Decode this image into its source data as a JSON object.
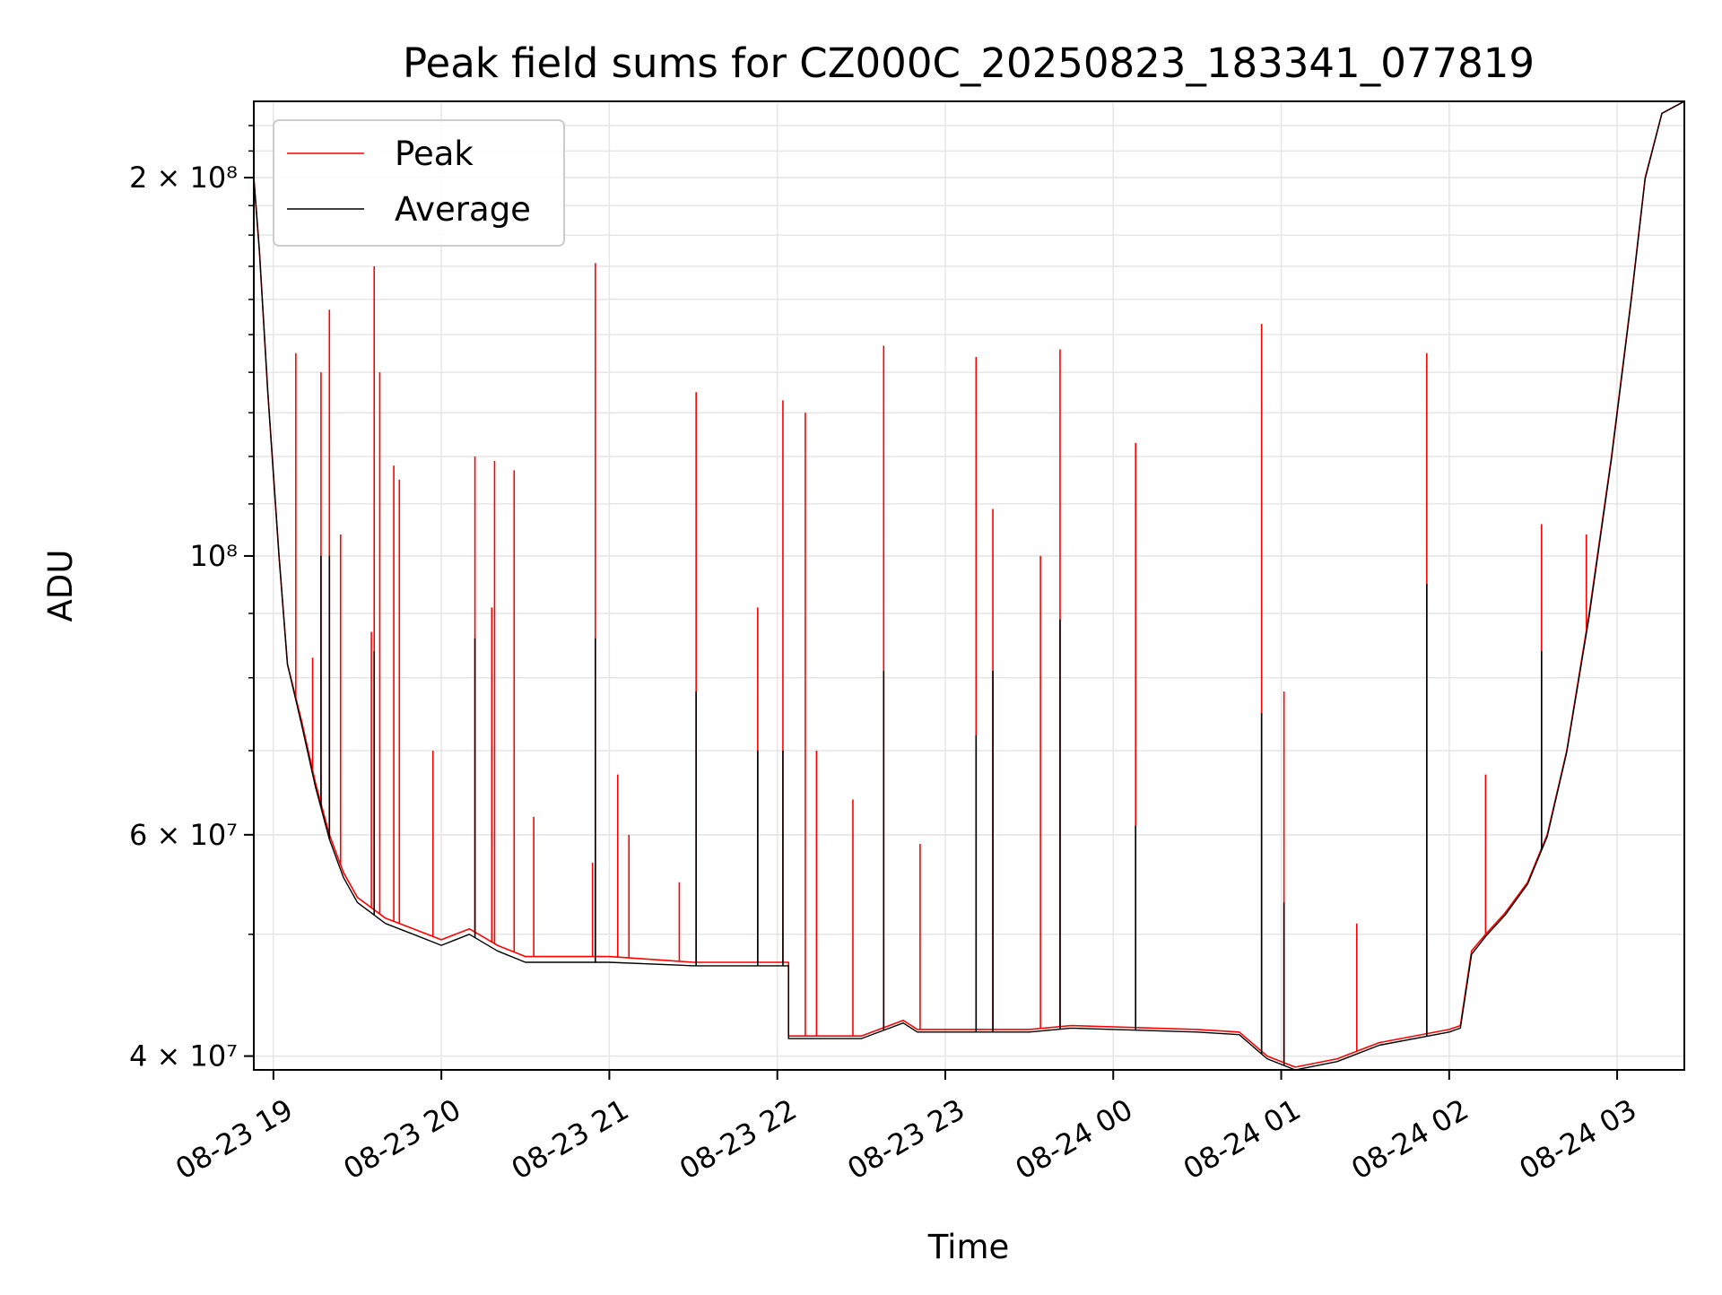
{
  "chart_data": {
    "type": "line",
    "title": "Peak field sums for CZ000C_20250823_183341_077819",
    "xlabel": "Time",
    "ylabel": "ADU",
    "y_scale": "log",
    "ylim": [
      39000000,
      230000000
    ],
    "xlim": [
      "2025-08-23 18:53",
      "2025-08-24 03:24"
    ],
    "grid": true,
    "legend_position": "top-left",
    "x_ticks": [
      {
        "label": "08-23 19",
        "value": "2025-08-23 19:00"
      },
      {
        "label": "08-23 20",
        "value": "2025-08-23 20:00"
      },
      {
        "label": "08-23 21",
        "value": "2025-08-23 21:00"
      },
      {
        "label": "08-23 22",
        "value": "2025-08-23 22:00"
      },
      {
        "label": "08-23 23",
        "value": "2025-08-23 23:00"
      },
      {
        "label": "08-24 00",
        "value": "2025-08-24 00:00"
      },
      {
        "label": "08-24 01",
        "value": "2025-08-24 01:00"
      },
      {
        "label": "08-24 02",
        "value": "2025-08-24 02:00"
      },
      {
        "label": "08-24 03",
        "value": "2025-08-24 03:00"
      }
    ],
    "y_ticks": [
      {
        "label": "4 × 10⁷",
        "value": 40000000
      },
      {
        "label": "6 × 10⁷",
        "value": 60000000
      },
      {
        "label": "10⁸",
        "value": 100000000
      },
      {
        "label": "2 × 10⁸",
        "value": 200000000
      }
    ],
    "series": [
      {
        "name": "Peak",
        "color": "#ff0000",
        "baseline": [
          [
            "2025-08-23 18:53",
            200000000
          ],
          [
            "2025-08-23 18:55",
            175000000
          ],
          [
            "2025-08-23 18:58",
            135000000
          ],
          [
            "2025-08-23 19:02",
            100000000
          ],
          [
            "2025-08-23 19:05",
            82000000
          ],
          [
            "2025-08-23 19:10",
            74000000
          ],
          [
            "2025-08-23 19:15",
            66000000
          ],
          [
            "2025-08-23 19:20",
            60000000
          ],
          [
            "2025-08-23 19:25",
            56000000
          ],
          [
            "2025-08-23 19:30",
            53500000
          ],
          [
            "2025-08-23 19:40",
            51500000
          ],
          [
            "2025-08-23 19:50",
            50500000
          ],
          [
            "2025-08-23 20:00",
            49500000
          ],
          [
            "2025-08-23 20:10",
            50500000
          ],
          [
            "2025-08-23 20:20",
            49000000
          ],
          [
            "2025-08-23 20:30",
            48000000
          ],
          [
            "2025-08-23 21:00",
            48000000
          ],
          [
            "2025-08-23 21:30",
            47500000
          ],
          [
            "2025-08-23 22:04",
            47500000
          ],
          [
            "2025-08-23 22:04",
            41500000
          ],
          [
            "2025-08-23 22:30",
            41500000
          ],
          [
            "2025-08-23 22:45",
            42700000
          ],
          [
            "2025-08-23 22:50",
            42000000
          ],
          [
            "2025-08-23 23:30",
            42000000
          ],
          [
            "2025-08-23 23:45",
            42300000
          ],
          [
            "2025-08-24 00:30",
            42000000
          ],
          [
            "2025-08-24 00:45",
            41800000
          ],
          [
            "2025-08-24 00:55",
            40000000
          ],
          [
            "2025-08-24 01:05",
            39200000
          ],
          [
            "2025-08-24 01:20",
            39800000
          ],
          [
            "2025-08-24 01:35",
            41000000
          ],
          [
            "2025-08-24 02:00",
            42000000
          ],
          [
            "2025-08-24 02:04",
            42300000
          ],
          [
            "2025-08-24 02:08",
            48500000
          ],
          [
            "2025-08-24 02:13",
            50000000
          ],
          [
            "2025-08-24 02:20",
            52000000
          ],
          [
            "2025-08-24 02:28",
            55000000
          ],
          [
            "2025-08-24 02:35",
            60000000
          ],
          [
            "2025-08-24 02:42",
            70000000
          ],
          [
            "2025-08-24 02:50",
            90000000
          ],
          [
            "2025-08-24 02:58",
            120000000
          ],
          [
            "2025-08-24 03:05",
            160000000
          ],
          [
            "2025-08-24 03:10",
            200000000
          ],
          [
            "2025-08-24 03:16",
            225000000
          ],
          [
            "2025-08-24 03:24",
            230000000
          ]
        ],
        "spikes": [
          [
            "2025-08-23 19:08",
            145000000
          ],
          [
            "2025-08-23 19:14",
            83000000
          ],
          [
            "2025-08-23 19:17",
            140000000
          ],
          [
            "2025-08-23 19:20",
            157000000
          ],
          [
            "2025-08-23 19:24",
            104000000
          ],
          [
            "2025-08-23 19:35",
            87000000
          ],
          [
            "2025-08-23 19:36",
            170000000
          ],
          [
            "2025-08-23 19:38",
            140000000
          ],
          [
            "2025-08-23 19:43",
            118000000
          ],
          [
            "2025-08-23 19:45",
            115000000
          ],
          [
            "2025-08-23 19:57",
            70000000
          ],
          [
            "2025-08-23 20:12",
            120000000
          ],
          [
            "2025-08-23 20:18",
            91000000
          ],
          [
            "2025-08-23 20:19",
            119000000
          ],
          [
            "2025-08-23 20:26",
            117000000
          ],
          [
            "2025-08-23 20:33",
            62000000
          ],
          [
            "2025-08-23 20:54",
            57000000
          ],
          [
            "2025-08-23 20:55",
            171000000
          ],
          [
            "2025-08-23 21:03",
            67000000
          ],
          [
            "2025-08-23 21:07",
            60000000
          ],
          [
            "2025-08-23 21:25",
            55000000
          ],
          [
            "2025-08-23 21:31",
            135000000
          ],
          [
            "2025-08-23 21:53",
            91000000
          ],
          [
            "2025-08-23 22:02",
            133000000
          ],
          [
            "2025-08-23 22:10",
            130000000
          ],
          [
            "2025-08-23 22:14",
            70000000
          ],
          [
            "2025-08-23 22:27",
            64000000
          ],
          [
            "2025-08-23 22:38",
            147000000
          ],
          [
            "2025-08-23 22:51",
            59000000
          ],
          [
            "2025-08-23 23:11",
            144000000
          ],
          [
            "2025-08-23 23:17",
            109000000
          ],
          [
            "2025-08-23 23:34",
            100000000
          ],
          [
            "2025-08-23 23:41",
            146000000
          ],
          [
            "2025-08-24 00:08",
            123000000
          ],
          [
            "2025-08-24 00:53",
            153000000
          ],
          [
            "2025-08-24 01:01",
            78000000
          ],
          [
            "2025-08-24 01:27",
            51000000
          ],
          [
            "2025-08-24 01:52",
            145000000
          ],
          [
            "2025-08-24 02:13",
            67000000
          ],
          [
            "2025-08-24 02:33",
            106000000
          ],
          [
            "2025-08-24 02:49",
            104000000
          ]
        ]
      },
      {
        "name": "Average",
        "color": "#000000",
        "baseline": [
          [
            "2025-08-23 18:53",
            200000000
          ],
          [
            "2025-08-23 18:55",
            175000000
          ],
          [
            "2025-08-23 18:58",
            135000000
          ],
          [
            "2025-08-23 19:02",
            100000000
          ],
          [
            "2025-08-23 19:05",
            82000000
          ],
          [
            "2025-08-23 19:10",
            73500000
          ],
          [
            "2025-08-23 19:15",
            65500000
          ],
          [
            "2025-08-23 19:20",
            59500000
          ],
          [
            "2025-08-23 19:25",
            55500000
          ],
          [
            "2025-08-23 19:30",
            53000000
          ],
          [
            "2025-08-23 19:40",
            51000000
          ],
          [
            "2025-08-23 19:50",
            50000000
          ],
          [
            "2025-08-23 20:00",
            49000000
          ],
          [
            "2025-08-23 20:10",
            50000000
          ],
          [
            "2025-08-23 20:20",
            48500000
          ],
          [
            "2025-08-23 20:30",
            47500000
          ],
          [
            "2025-08-23 21:00",
            47500000
          ],
          [
            "2025-08-23 21:30",
            47200000
          ],
          [
            "2025-08-23 22:04",
            47200000
          ],
          [
            "2025-08-23 22:04",
            41300000
          ],
          [
            "2025-08-23 22:30",
            41300000
          ],
          [
            "2025-08-23 22:45",
            42500000
          ],
          [
            "2025-08-23 22:50",
            41800000
          ],
          [
            "2025-08-23 23:30",
            41800000
          ],
          [
            "2025-08-23 23:45",
            42100000
          ],
          [
            "2025-08-24 00:30",
            41800000
          ],
          [
            "2025-08-24 00:45",
            41600000
          ],
          [
            "2025-08-24 00:55",
            39800000
          ],
          [
            "2025-08-24 01:05",
            39000000
          ],
          [
            "2025-08-24 01:20",
            39600000
          ],
          [
            "2025-08-24 01:35",
            40800000
          ],
          [
            "2025-08-24 02:00",
            41800000
          ],
          [
            "2025-08-24 02:04",
            42100000
          ],
          [
            "2025-08-24 02:08",
            48200000
          ],
          [
            "2025-08-24 02:13",
            49800000
          ],
          [
            "2025-08-24 02:20",
            51800000
          ],
          [
            "2025-08-24 02:28",
            54800000
          ],
          [
            "2025-08-24 02:35",
            59800000
          ],
          [
            "2025-08-24 02:42",
            69800000
          ],
          [
            "2025-08-24 02:50",
            89500000
          ],
          [
            "2025-08-24 02:58",
            119500000
          ],
          [
            "2025-08-24 03:05",
            159500000
          ],
          [
            "2025-08-24 03:10",
            199500000
          ],
          [
            "2025-08-24 03:16",
            225000000
          ],
          [
            "2025-08-24 03:24",
            230000000
          ]
        ],
        "spikes": [
          [
            "2025-08-23 19:17",
            100000000
          ],
          [
            "2025-08-23 19:20",
            100000000
          ],
          [
            "2025-08-23 19:36",
            84000000
          ],
          [
            "2025-08-23 20:12",
            86000000
          ],
          [
            "2025-08-23 20:55",
            86000000
          ],
          [
            "2025-08-23 21:31",
            78000000
          ],
          [
            "2025-08-23 21:53",
            70000000
          ],
          [
            "2025-08-23 22:02",
            70000000
          ],
          [
            "2025-08-23 22:38",
            81000000
          ],
          [
            "2025-08-23 23:11",
            72000000
          ],
          [
            "2025-08-23 23:17",
            81000000
          ],
          [
            "2025-08-23 23:41",
            89000000
          ],
          [
            "2025-08-24 00:08",
            61000000
          ],
          [
            "2025-08-24 00:53",
            75000000
          ],
          [
            "2025-08-24 01:01",
            53000000
          ],
          [
            "2025-08-24 01:52",
            95000000
          ],
          [
            "2025-08-24 02:33",
            84000000
          ]
        ]
      }
    ]
  }
}
